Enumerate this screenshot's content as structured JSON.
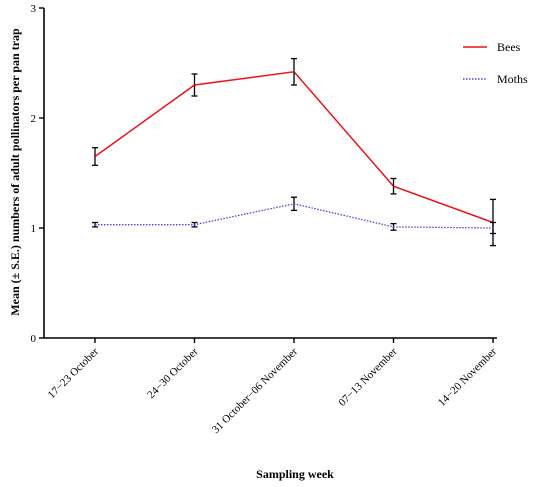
{
  "chart_data": {
    "type": "line",
    "title": "",
    "xlabel": "Sampling week",
    "ylabel": "Mean (± S.E.) numbers of adult pollinators per pan trap",
    "categories": [
      "17−23 October",
      "24−30 October",
      "31 October−06 November",
      "07−13 November",
      "14−20 November"
    ],
    "ylim": [
      0,
      3
    ],
    "yticks": [
      "0",
      "1",
      "2",
      "3"
    ],
    "grid": false,
    "legend_position": "top-right",
    "series": [
      {
        "name": "Bees",
        "color": "#e8141b",
        "line_style": "solid",
        "values": [
          1.65,
          2.3,
          2.42,
          1.38,
          1.05
        ],
        "errors": [
          0.08,
          0.1,
          0.12,
          0.07,
          0.21
        ]
      },
      {
        "name": "Moths",
        "color": "#4a4ad6",
        "line_style": "dotted",
        "values": [
          1.03,
          1.03,
          1.22,
          1.01,
          1.0
        ],
        "errors": [
          0.02,
          0.02,
          0.06,
          0.03,
          0.05
        ]
      }
    ]
  }
}
